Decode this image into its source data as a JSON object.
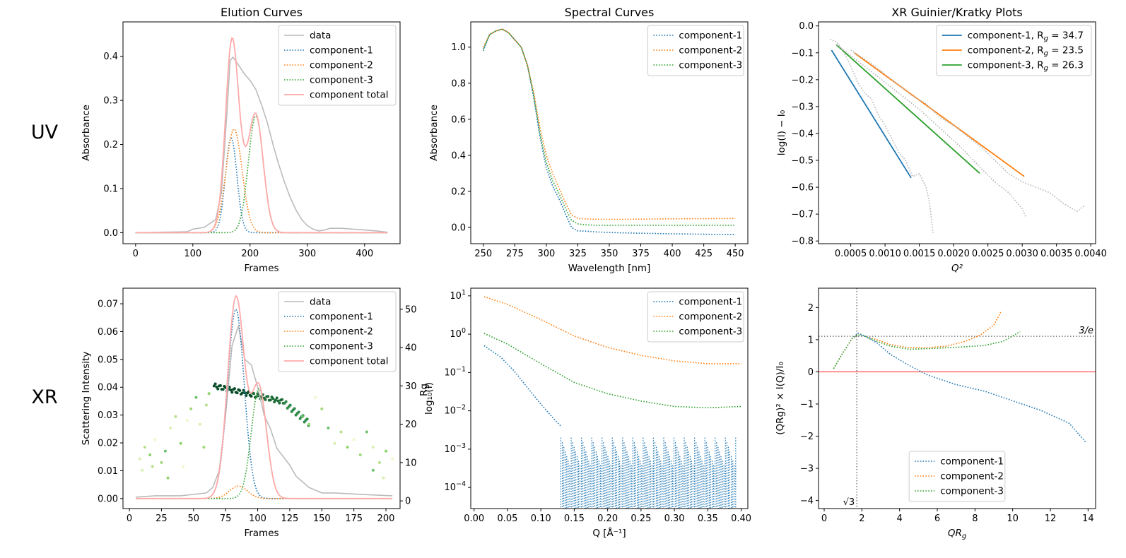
{
  "row_labels": {
    "uv": "UV",
    "xr": "XR"
  },
  "colors": {
    "c1": "#1f77b4",
    "c2": "#ff7f0e",
    "c3": "#2ca02c",
    "data": "#bbbbbb",
    "total": "#ffaaaa",
    "zero_line": "#ff6b6b"
  },
  "chart_data": [
    {
      "id": "uv_elution",
      "type": "line",
      "title": "Elution Curves",
      "xlabel": "Frames",
      "ylabel": "Absorbance",
      "xlim": [
        -22,
        462
      ],
      "ylim": [
        -0.025,
        0.478
      ],
      "xticks": [
        0,
        100,
        200,
        300,
        400
      ],
      "yticks": [
        0.0,
        0.1,
        0.2,
        0.3,
        0.4
      ],
      "ytick_labels": [
        "0.0",
        "0.1",
        "0.2",
        "0.3",
        "0.4"
      ],
      "legend_position": "top-right",
      "series": [
        {
          "name": "data",
          "style": "gray-solid",
          "x": [
            0,
            90,
            100,
            120,
            140,
            150,
            160,
            165,
            170,
            180,
            190,
            200,
            210,
            220,
            230,
            240,
            250,
            260,
            270,
            280,
            290,
            300,
            310,
            320,
            330,
            340,
            360,
            380,
            400,
            420,
            440
          ],
          "y": [
            0.0,
            0.002,
            0.008,
            0.012,
            0.03,
            0.09,
            0.28,
            0.39,
            0.398,
            0.38,
            0.36,
            0.345,
            0.325,
            0.29,
            0.25,
            0.2,
            0.155,
            0.115,
            0.08,
            0.052,
            0.03,
            0.016,
            0.008,
            0.004,
            0.006,
            0.01,
            0.01,
            0.008,
            0.006,
            0.004,
            0.001
          ]
        },
        {
          "name": "component-1",
          "style": "c1-dotted",
          "gauss": [
            0.215,
            167,
            10
          ],
          "xrange": [
            0,
            440
          ]
        },
        {
          "name": "component-2",
          "style": "c2-dotted",
          "gauss": [
            0.235,
            172,
            14
          ],
          "xrange": [
            0,
            440
          ]
        },
        {
          "name": "component-3",
          "style": "c3-dotted",
          "gauss": [
            0.265,
            210,
            13
          ],
          "xrange": [
            0,
            440
          ]
        },
        {
          "name": "component total",
          "style": "total-solid",
          "sum": true,
          "xrange": [
            0,
            440
          ]
        }
      ]
    },
    {
      "id": "uv_spectral",
      "type": "line",
      "title": "Spectral Curves",
      "xlabel": "Wavelength [nm]",
      "ylabel": "Absorbance",
      "xlim": [
        240,
        460
      ],
      "ylim": [
        -0.09,
        1.14
      ],
      "xticks": [
        250,
        275,
        300,
        325,
        350,
        375,
        400,
        425,
        450
      ],
      "yticks": [
        0.0,
        0.2,
        0.4,
        0.6,
        0.8,
        1.0
      ],
      "ytick_labels": [
        "0.0",
        "0.2",
        "0.4",
        "0.6",
        "0.8",
        "1.0"
      ],
      "legend_position": "top-right",
      "series": [
        {
          "name": "component-1",
          "style": "c1-dotted",
          "x": [
            250,
            255,
            260,
            265,
            270,
            275,
            280,
            285,
            290,
            295,
            300,
            305,
            310,
            315,
            320,
            325,
            330,
            340,
            360,
            400,
            450
          ],
          "y": [
            0.98,
            1.07,
            1.09,
            1.1,
            1.08,
            1.04,
            1.0,
            0.9,
            0.72,
            0.5,
            0.33,
            0.23,
            0.16,
            0.08,
            0.0,
            -0.02,
            -0.02,
            -0.025,
            -0.03,
            -0.035,
            -0.04
          ]
        },
        {
          "name": "component-2",
          "style": "c2-dotted",
          "x": [
            250,
            255,
            260,
            265,
            270,
            275,
            280,
            285,
            290,
            295,
            300,
            305,
            310,
            315,
            320,
            325,
            330,
            340,
            360,
            400,
            450
          ],
          "y": [
            1.0,
            1.07,
            1.09,
            1.1,
            1.08,
            1.04,
            1.0,
            0.9,
            0.75,
            0.55,
            0.4,
            0.3,
            0.22,
            0.14,
            0.07,
            0.05,
            0.048,
            0.045,
            0.045,
            0.048,
            0.05
          ]
        },
        {
          "name": "component-3",
          "style": "c3-dotted",
          "x": [
            250,
            255,
            260,
            265,
            270,
            275,
            280,
            285,
            290,
            295,
            300,
            305,
            310,
            315,
            320,
            325,
            330,
            340,
            360,
            400,
            450
          ],
          "y": [
            0.99,
            1.07,
            1.09,
            1.1,
            1.08,
            1.04,
            1.0,
            0.9,
            0.73,
            0.52,
            0.36,
            0.26,
            0.19,
            0.11,
            0.04,
            0.02,
            0.015,
            0.012,
            0.012,
            0.012,
            0.012
          ]
        }
      ]
    },
    {
      "id": "xr_guinier",
      "type": "line",
      "title": "XR Guinier/Kratky Plots",
      "xlabel": "Q²",
      "ylabel": "log(I) − I₀",
      "xlim": [
        3e-05,
        0.00407
      ],
      "ylim": [
        -0.81,
        0.015
      ],
      "xticks": [
        0.0005,
        0.001,
        0.0015,
        0.002,
        0.0025,
        0.003,
        0.0035,
        0.004
      ],
      "xtick_labels": [
        "0.0005",
        "0.0010",
        "0.0015",
        "0.0020",
        "0.0025",
        "0.0030",
        "0.0035",
        "0.0040"
      ],
      "yticks": [
        0.0,
        -0.1,
        -0.2,
        -0.3,
        -0.4,
        -0.5,
        -0.6,
        -0.7,
        -0.8
      ],
      "ytick_labels": [
        "0.0",
        "−0.1",
        "−0.2",
        "−0.3",
        "−0.4",
        "−0.5",
        "−0.6",
        "−0.7",
        "−0.8"
      ],
      "legend_position": "top-right",
      "series": [
        {
          "name": "component-1, Rg = 34.7",
          "legend_label": "component-1, R",
          "legend_sub": "g",
          "legend_value": " = 34.7",
          "style": "c1-solid",
          "x": [
            0.00022,
            0.00138
          ],
          "y": [
            -0.09,
            -0.565
          ]
        },
        {
          "name": "component-2, Rg = 23.5",
          "legend_label": "component-2, R",
          "legend_sub": "g",
          "legend_value": " = 23.5",
          "style": "c2-solid",
          "x": [
            0.00055,
            0.00303
          ],
          "y": [
            -0.1,
            -0.56
          ]
        },
        {
          "name": "component-3, Rg = 26.3",
          "legend_label": "component-3, R",
          "legend_sub": "g",
          "legend_value": " = 26.3",
          "style": "c3-solid",
          "x": [
            0.00029,
            0.00238
          ],
          "y": [
            -0.07,
            -0.548
          ]
        },
        {
          "name": "data-1",
          "style": "gray-dotted",
          "x": [
            0.0002,
            0.0003,
            0.0004,
            0.0005,
            0.0006,
            0.0007,
            0.0008,
            0.0009,
            0.001,
            0.0011,
            0.0012,
            0.0013,
            0.0014,
            0.0015,
            0.0016,
            0.00165,
            0.0017
          ],
          "y": [
            -0.05,
            -0.06,
            -0.1,
            -0.15,
            -0.21,
            -0.25,
            -0.27,
            -0.33,
            -0.37,
            -0.42,
            -0.47,
            -0.5,
            -0.56,
            -0.55,
            -0.6,
            -0.66,
            -0.77
          ]
        },
        {
          "name": "data-2",
          "style": "gray-dotted",
          "x": [
            0.0005,
            0.0008,
            0.001,
            0.0012,
            0.0014,
            0.0016,
            0.0018,
            0.002,
            0.0022,
            0.0024,
            0.0026,
            0.0028,
            0.003,
            0.0032,
            0.0034,
            0.0036,
            0.0038,
            0.0039
          ],
          "y": [
            -0.09,
            -0.14,
            -0.18,
            -0.22,
            -0.26,
            -0.29,
            -0.34,
            -0.37,
            -0.41,
            -0.45,
            -0.5,
            -0.55,
            -0.58,
            -0.6,
            -0.62,
            -0.66,
            -0.69,
            -0.67
          ]
        },
        {
          "name": "data-3",
          "style": "gray-dotted",
          "x": [
            0.0003,
            0.0006,
            0.0009,
            0.0012,
            0.0015,
            0.0018,
            0.0021,
            0.0024,
            0.0026,
            0.0028,
            0.003,
            0.00305
          ],
          "y": [
            -0.07,
            -0.13,
            -0.19,
            -0.25,
            -0.31,
            -0.38,
            -0.45,
            -0.53,
            -0.58,
            -0.62,
            -0.68,
            -0.71
          ]
        }
      ]
    },
    {
      "id": "xr_elution",
      "type": "line",
      "xlabel": "Frames",
      "ylabel": "Scattering Intensity",
      "ylabel_right": "log₁₀(I)",
      "ylabel_right_overlap": "Rg",
      "xlim": [
        -5,
        211
      ],
      "ylim": [
        -0.0036,
        0.0756
      ],
      "ylim_right": [
        -2.0,
        55.5
      ],
      "xticks": [
        0,
        25,
        50,
        75,
        100,
        125,
        150,
        175,
        200
      ],
      "yticks": [
        0.0,
        0.01,
        0.02,
        0.03,
        0.04,
        0.05,
        0.06,
        0.07
      ],
      "ytick_labels": [
        "0.00",
        "0.01",
        "0.02",
        "0.03",
        "0.04",
        "0.05",
        "0.06",
        "0.07"
      ],
      "yticks_right": [
        0,
        10,
        20,
        30,
        40,
        50
      ],
      "legend_position": "top-right",
      "series": [
        {
          "name": "data",
          "style": "gray-solid",
          "x": [
            5,
            20,
            40,
            60,
            65,
            70,
            75,
            80,
            85,
            90,
            95,
            100,
            105,
            110,
            115,
            120,
            125,
            130,
            140,
            150,
            160,
            180,
            205
          ],
          "y": [
            0.0005,
            0.001,
            0.001,
            0.002,
            0.004,
            0.01,
            0.03,
            0.055,
            0.062,
            0.05,
            0.048,
            0.04,
            0.03,
            0.025,
            0.018,
            0.015,
            0.012,
            0.008,
            0.004,
            0.002,
            0.002,
            0.0015,
            0.001
          ]
        },
        {
          "name": "component-1",
          "style": "c1-dotted",
          "gauss": [
            0.068,
            83,
            6.5
          ],
          "xrange": [
            5,
            205
          ]
        },
        {
          "name": "component-2",
          "style": "c2-dotted",
          "gauss": [
            0.0045,
            85,
            7
          ],
          "xrange": [
            5,
            205
          ]
        },
        {
          "name": "component-3",
          "style": "c3-dotted",
          "gauss": [
            0.0395,
            101,
            6
          ],
          "xrange": [
            5,
            205
          ]
        },
        {
          "name": "component total",
          "style": "total-solid",
          "sum": true,
          "xrange": [
            5,
            205
          ]
        }
      ]
    },
    {
      "id": "xr_spectral",
      "type": "line",
      "xlabel": "Q [Å⁻¹]",
      "xlim": [
        -0.005,
        0.41
      ],
      "ylim_log10": [
        -4.55,
        1.2
      ],
      "xticks": [
        0.0,
        0.05,
        0.1,
        0.15,
        0.2,
        0.25,
        0.3,
        0.35,
        0.4
      ],
      "xtick_labels": [
        "0.00",
        "0.05",
        "0.10",
        "0.15",
        "0.20",
        "0.25",
        "0.30",
        "0.35",
        "0.40"
      ],
      "ytick_exponents": [
        -4,
        -3,
        -2,
        -1,
        0,
        1
      ],
      "yscale": "log",
      "legend_position": "top-right",
      "series": [
        {
          "name": "component-1",
          "style": "c1-dotted",
          "x": [
            0.015,
            0.04,
            0.06,
            0.08,
            0.1,
            0.12,
            0.13
          ],
          "y": [
            0.5,
            0.25,
            0.11,
            0.04,
            0.015,
            0.006,
            0.004
          ]
        },
        {
          "name": "component-2",
          "style": "c2-dotted",
          "x": [
            0.015,
            0.05,
            0.1,
            0.15,
            0.2,
            0.25,
            0.3,
            0.35,
            0.4
          ],
          "y": [
            9.5,
            6.0,
            2.4,
            0.9,
            0.45,
            0.28,
            0.2,
            0.17,
            0.17
          ]
        },
        {
          "name": "component-3",
          "style": "c3-dotted",
          "x": [
            0.015,
            0.05,
            0.1,
            0.15,
            0.2,
            0.25,
            0.3,
            0.35,
            0.4
          ],
          "y": [
            1.05,
            0.55,
            0.17,
            0.055,
            0.028,
            0.018,
            0.013,
            0.012,
            0.013
          ]
        }
      ]
    },
    {
      "id": "xr_kratky",
      "type": "line",
      "xlabel": "QRg",
      "ylabel": "(QRg)² × I(Q)/I₀",
      "xlim": [
        -0.3,
        14.4
      ],
      "ylim": [
        -4.25,
        2.6
      ],
      "xticks": [
        0,
        2,
        4,
        6,
        8,
        10,
        12,
        14
      ],
      "yticks": [
        -4,
        -3,
        -2,
        -1,
        0,
        1,
        2
      ],
      "ytick_labels": [
        "−4",
        "−3",
        "−2",
        "−1",
        "0",
        "1",
        "2"
      ],
      "hline_value": 1.104,
      "hline_label": "3/e",
      "vline_value": 1.732,
      "vline_label": "√3",
      "legend_position": "lower-center",
      "series": [
        {
          "name": "component-1",
          "style": "c1-dotted",
          "x": [
            0.5,
            1.0,
            1.5,
            1.8,
            2.2,
            2.8,
            3.5,
            4.5,
            5.5,
            7,
            8.5,
            10,
            11.5,
            13,
            13.9
          ],
          "y": [
            0.1,
            0.6,
            1.05,
            1.2,
            1.1,
            0.9,
            0.55,
            0.2,
            -0.1,
            -0.4,
            -0.6,
            -0.9,
            -1.2,
            -1.6,
            -2.2
          ]
        },
        {
          "name": "component-2",
          "style": "c2-dotted",
          "x": [
            0.5,
            1.0,
            1.5,
            1.8,
            2.2,
            2.8,
            3.5,
            4.5,
            5.5,
            6.5,
            7.5,
            8.3,
            9.0,
            9.4
          ],
          "y": [
            0.1,
            0.6,
            1.05,
            1.15,
            1.1,
            1.0,
            0.85,
            0.75,
            0.75,
            0.8,
            0.95,
            1.15,
            1.45,
            1.9
          ]
        },
        {
          "name": "component-3",
          "style": "c3-dotted",
          "x": [
            0.5,
            1.0,
            1.5,
            1.8,
            2.2,
            2.8,
            3.5,
            4.5,
            5.5,
            6.5,
            7.5,
            8.5,
            9.5,
            10.4
          ],
          "y": [
            0.1,
            0.6,
            1.05,
            1.15,
            1.1,
            0.95,
            0.8,
            0.7,
            0.72,
            0.75,
            0.78,
            0.82,
            0.95,
            1.25
          ]
        }
      ]
    }
  ]
}
